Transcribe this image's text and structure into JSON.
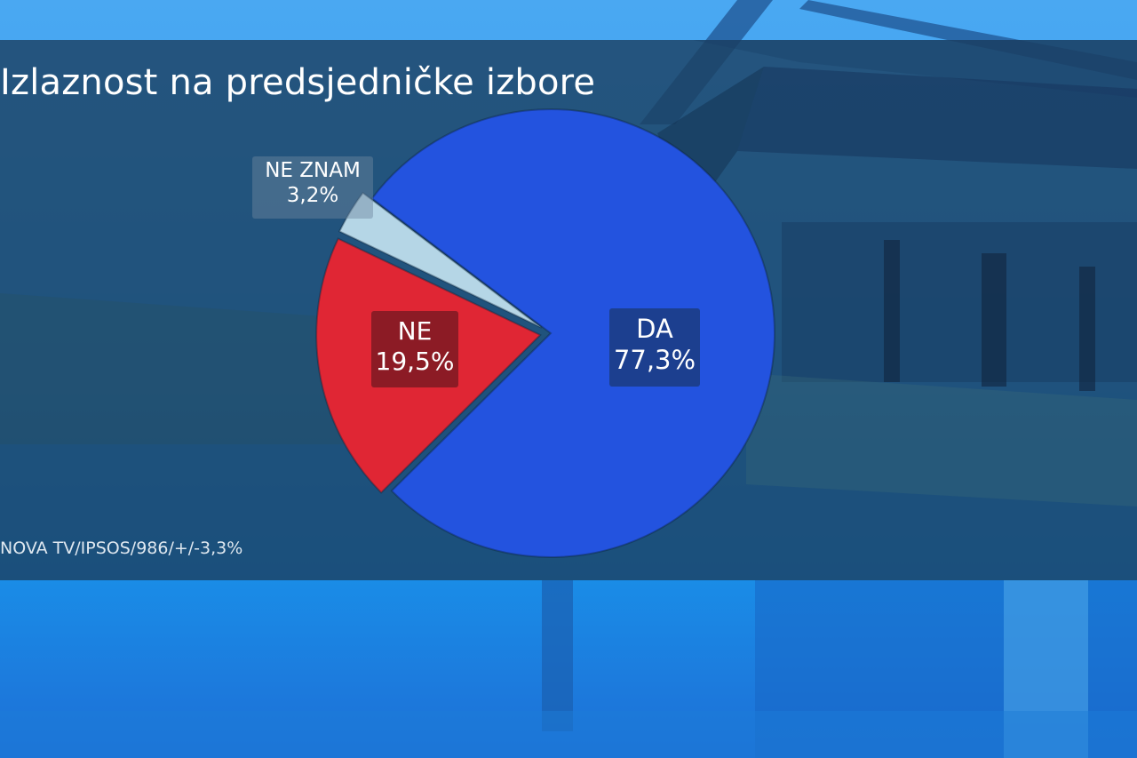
{
  "title": "Izlaznost na predsjedničke izbore",
  "source": "NOVA TV/IPSOS/986/+/-3,3%",
  "colors": {
    "da": "#2353df",
    "ne": "#e02634",
    "ne_znam": "#b5d6e6"
  },
  "chart_data": {
    "type": "pie",
    "title": "Izlaznost na predsjedničke izbore",
    "slices": [
      {
        "label": "DA",
        "value": 77.3,
        "value_label": "77,3%",
        "color": "#2353df",
        "exploded": false
      },
      {
        "label": "NE",
        "value": 19.5,
        "value_label": "19,5%",
        "color": "#e02634",
        "exploded": true
      },
      {
        "label": "NE ZNAM",
        "value": 3.2,
        "value_label": "3,2%",
        "color": "#b5d6e6",
        "exploded": true
      }
    ]
  }
}
